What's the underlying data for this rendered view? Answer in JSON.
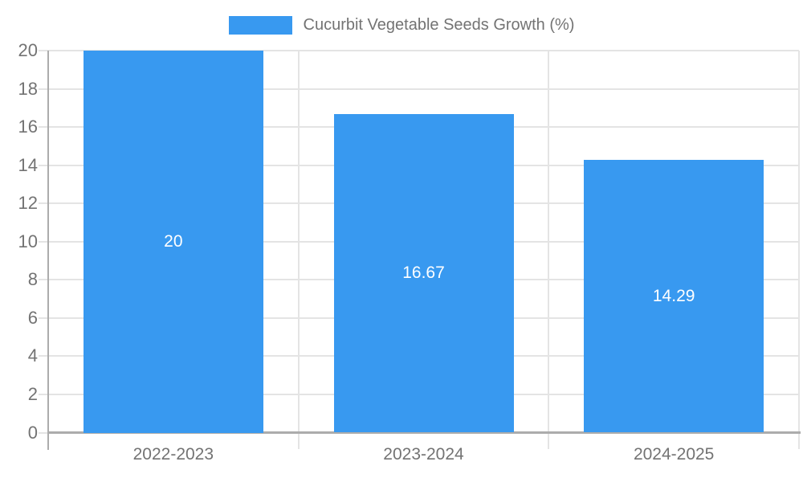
{
  "chart_data": {
    "type": "bar",
    "title": "Cucurbit Vegetable Seeds Growth (%)",
    "categories": [
      "2022-2023",
      "2023-2024",
      "2024-2025"
    ],
    "values": [
      20,
      16.67,
      14.29
    ],
    "value_labels": [
      "20",
      "16.67",
      "14.29"
    ],
    "ylim": [
      0,
      20
    ],
    "ytick_step": 2,
    "ytick_labels": [
      "0",
      "2",
      "4",
      "6",
      "8",
      "10",
      "12",
      "14",
      "16",
      "18",
      "20"
    ],
    "grid": "horizontal gridlines + category separator lines, left/bottom axis lines",
    "legend_position": "top-center",
    "colors": {
      "bar": "#3899F0",
      "grid": "#E4E4E4",
      "axis": "#ACACAC",
      "tick_text": "#737373",
      "value_text": "#FFFFFF",
      "background": "#FFFFFF"
    }
  }
}
